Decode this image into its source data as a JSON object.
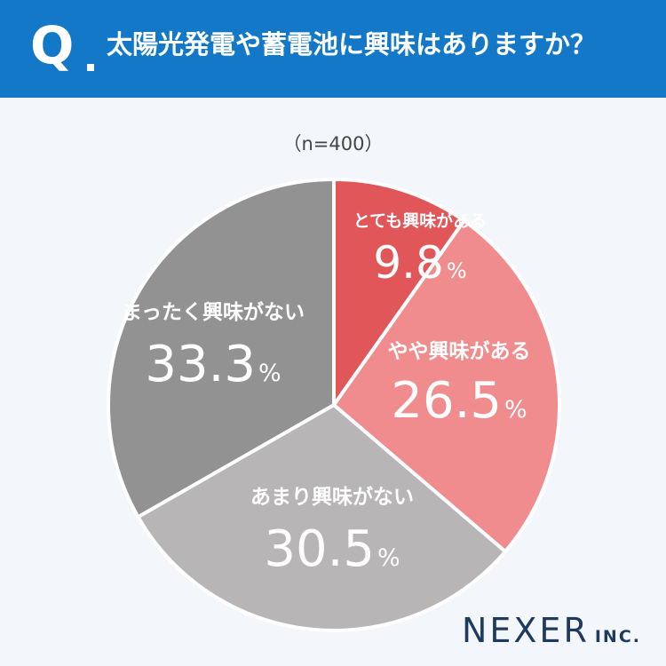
{
  "header": {
    "q_mark": "Q",
    "question": "太陽光発電や蓄電池に興味はありますか？"
  },
  "sample_label": "（n=400）",
  "brand": {
    "name": "NEXER",
    "suffix": "INC."
  },
  "colors": {
    "header_bg": "#1378c8",
    "background": "#f3f7fb",
    "very_interested": "#e15759",
    "somewhat_interested": "#f08c8d",
    "not_very_interested": "#b7b5b6",
    "not_interested": "#929292"
  },
  "chart_data": {
    "type": "pie",
    "title": "太陽光発電や蓄電池に興味はありますか？",
    "n": 400,
    "unit": "%",
    "slices": [
      {
        "label": "とても興味がある",
        "value": 9.8,
        "display": "9.8",
        "color": "#e15759"
      },
      {
        "label": "やや興味がある",
        "value": 26.5,
        "display": "26.5",
        "color": "#f08c8d"
      },
      {
        "label": "あまり興味がない",
        "value": 30.5,
        "display": "30.5",
        "color": "#b7b5b6"
      },
      {
        "label": "まったく興味がない",
        "value": 33.3,
        "display": "33.3",
        "color": "#929292"
      }
    ]
  }
}
